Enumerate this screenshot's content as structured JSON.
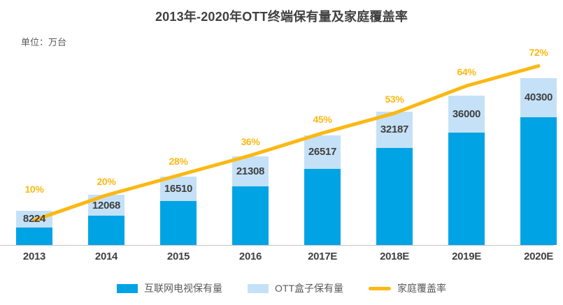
{
  "title": "2013年-2020年OTT终端保有量及家庭覆盖率",
  "unit_label": "单位：万台",
  "colors": {
    "bar_tv": "#00A4E4",
    "bar_box": "#C5E1F7",
    "line": "#FCB813",
    "percent_text": "#FCB813",
    "value_text": "#404040",
    "axis": "#C4C4C4",
    "legend_text": "#595959"
  },
  "chart_data": {
    "type": "bar",
    "subtype": "stacked-bars-with-line-overlay",
    "title": "2013年-2020年OTT终端保有量及家庭覆盖率",
    "unit": "万台",
    "categories": [
      "2013",
      "2014",
      "2015",
      "2016",
      "2017E",
      "2018E",
      "2019E",
      "2020E"
    ],
    "series": [
      {
        "name": "互联网电视保有量",
        "type": "bar",
        "stacked": true,
        "values": [
          4280,
          7040,
          10550,
          14200,
          18420,
          23400,
          27200,
          30900
        ]
      },
      {
        "name": "OTT盒子保有量",
        "type": "bar",
        "stacked": true,
        "values": [
          3944,
          5028,
          5960,
          7108,
          8097,
          8787,
          8800,
          9400
        ]
      },
      {
        "name": "家庭覆盖率",
        "type": "line",
        "axis": "right",
        "unit": "%",
        "values": [
          10,
          20,
          28,
          36,
          45,
          53,
          64,
          72
        ]
      }
    ],
    "totals": [
      8224,
      12068,
      16510,
      21308,
      26517,
      32187,
      36000,
      40300
    ],
    "total_labels": [
      "8224",
      "12068",
      "16510",
      "21308",
      "26517",
      "32187",
      "36000",
      "40300"
    ],
    "percent_labels": [
      "10%",
      "20%",
      "28%",
      "36%",
      "45%",
      "53%",
      "64%",
      "72%"
    ],
    "ylim_left": [
      0,
      48000
    ],
    "ylim_right_percent": [
      0,
      80
    ],
    "grid": false,
    "legend_position": "bottom"
  },
  "legend": [
    {
      "label": "互联网电视保有量",
      "swatch": "bar",
      "color": "#00A4E4"
    },
    {
      "label": "OTT盒子保有量",
      "swatch": "bar",
      "color": "#C5E1F7"
    },
    {
      "label": "家庭覆盖率",
      "swatch": "line",
      "color": "#FCB813"
    }
  ]
}
